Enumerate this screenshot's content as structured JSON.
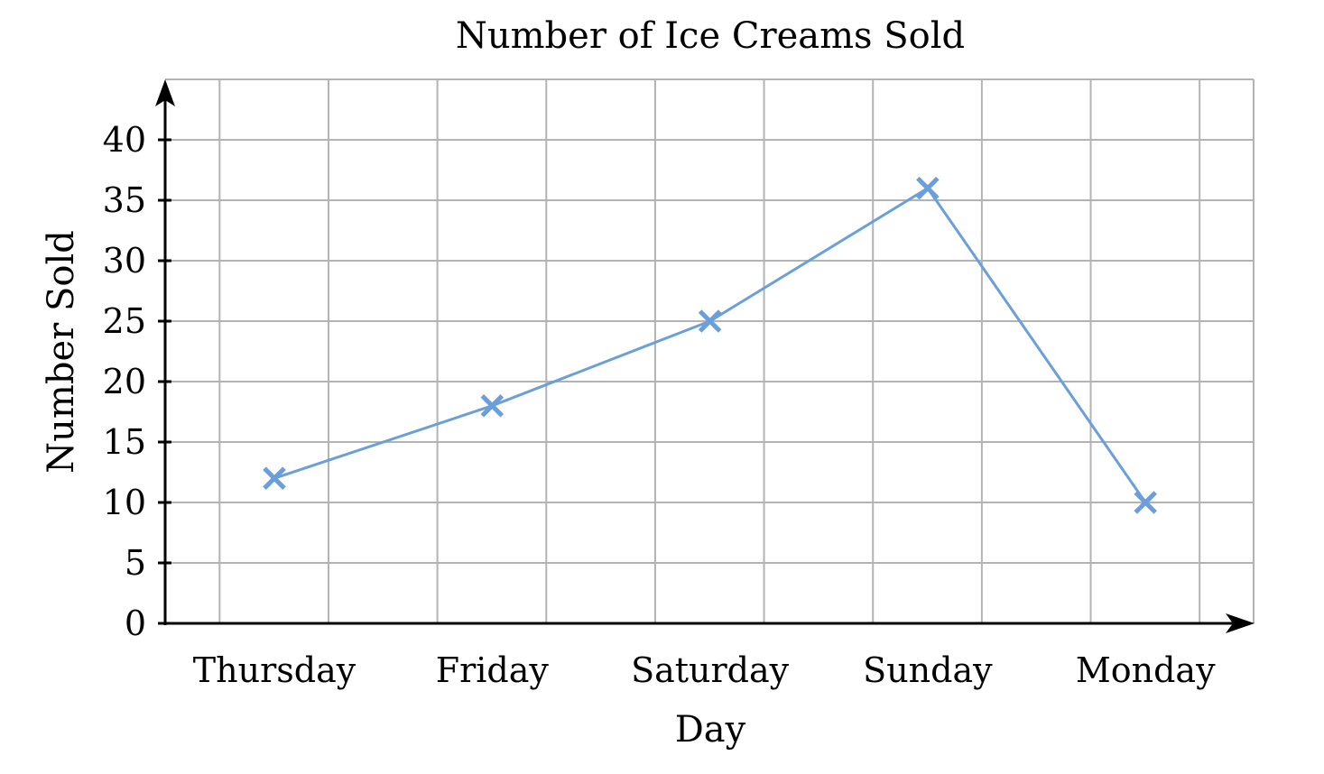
{
  "chart_data": {
    "type": "line",
    "title": "Number of Ice Creams Sold",
    "xlabel": "Day",
    "ylabel": "Number Sold",
    "categories": [
      "Thursday",
      "Friday",
      "Saturday",
      "Sunday",
      "Monday"
    ],
    "series": [
      {
        "name": "Ice Creams Sold",
        "values": [
          12,
          18,
          25,
          36,
          10
        ],
        "color": "#6a9fdb",
        "marker": "x"
      }
    ],
    "ylim": [
      0,
      40
    ],
    "yticks": [
      0,
      5,
      10,
      15,
      20,
      25,
      30,
      35,
      40
    ],
    "grid": true,
    "legend": null
  }
}
